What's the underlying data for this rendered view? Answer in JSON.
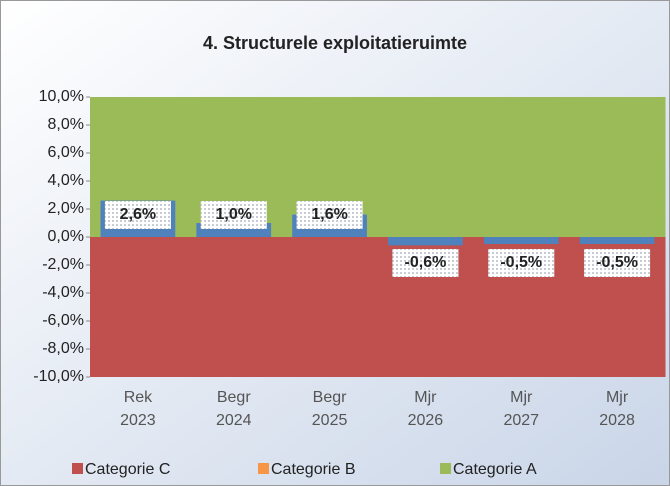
{
  "chart_data": {
    "type": "bar",
    "stacked": true,
    "title": "4. Structurele exploitatieruimte",
    "categories": [
      [
        "Rek",
        "2023"
      ],
      [
        "Begr",
        "2024"
      ],
      [
        "Begr",
        "2025"
      ],
      [
        "Mjr",
        "2026"
      ],
      [
        "Mjr",
        "2027"
      ],
      [
        "Mjr",
        "2028"
      ]
    ],
    "series": [
      {
        "name": "Categorie C",
        "color": "#c0504d",
        "values": [
          -10,
          -10,
          -10,
          -10,
          -10,
          -10
        ]
      },
      {
        "name": "Categorie B",
        "color": "#f79646",
        "values": [
          0,
          0,
          0,
          0,
          0,
          0
        ]
      },
      {
        "name": "Categorie A",
        "color": "#9bbb59",
        "values": [
          10,
          10,
          10,
          10,
          10,
          10
        ]
      }
    ],
    "bars": {
      "color": "#4f81bd",
      "values": [
        2.6,
        1.0,
        1.6,
        -0.6,
        -0.5,
        -0.5
      ],
      "value_labels": [
        "2,6%",
        "1,0%",
        "1,6%",
        "-0,6%",
        "-0,5%",
        "-0,5%"
      ]
    },
    "ylim": [
      -10,
      10
    ],
    "yticks": [
      {
        "value": 10,
        "label": "10,0%"
      },
      {
        "value": 8,
        "label": "8,0%"
      },
      {
        "value": 6,
        "label": "6,0%"
      },
      {
        "value": 4,
        "label": "4,0%"
      },
      {
        "value": 2,
        "label": "2,0%"
      },
      {
        "value": 0,
        "label": "0,0%"
      },
      {
        "value": -2,
        "label": "-2,0%"
      },
      {
        "value": -4,
        "label": "-4,0%"
      },
      {
        "value": -6,
        "label": "-6,0%"
      },
      {
        "value": -8,
        "label": "-8,0%"
      },
      {
        "value": -10,
        "label": "-10,0%"
      }
    ],
    "legend": "bottom"
  }
}
